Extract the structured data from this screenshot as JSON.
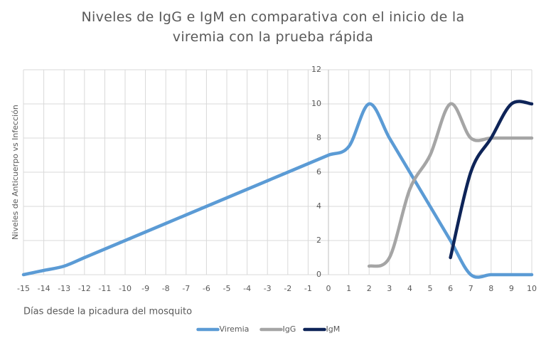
{
  "chart_data": {
    "type": "line",
    "title": "Niveles de IgG e IgM en comparativa con el inicio de la viremia con la prueba rápida",
    "x_label": "Días desde la picadura del mosquito",
    "y_label": "Niveles de Anticuerpo vs Infección",
    "x": [
      -15,
      -14,
      -13,
      -12,
      -11,
      -10,
      -9,
      -8,
      -7,
      -6,
      -5,
      -4,
      -3,
      -2,
      -1,
      0,
      1,
      2,
      3,
      4,
      5,
      6,
      7,
      8,
      9,
      10
    ],
    "series": [
      {
        "name": "Viremia",
        "color": "#5b9bd5",
        "values": [
          0,
          0.25,
          0.5,
          1,
          1.5,
          2,
          2.5,
          3,
          3.5,
          4,
          4.5,
          5,
          5.5,
          6,
          6.5,
          7,
          7.5,
          10,
          8,
          6,
          4,
          2,
          0,
          0,
          0,
          0
        ]
      },
      {
        "name": "IgG",
        "color": "#a5a5a5",
        "values": [
          null,
          null,
          null,
          null,
          null,
          null,
          null,
          null,
          null,
          null,
          null,
          null,
          null,
          null,
          null,
          null,
          null,
          0.5,
          1,
          5,
          7,
          10,
          8,
          8,
          8,
          8
        ]
      },
      {
        "name": "IgM",
        "color": "#0e2458",
        "values": [
          null,
          null,
          null,
          null,
          null,
          null,
          null,
          null,
          null,
          null,
          null,
          null,
          null,
          null,
          null,
          null,
          null,
          null,
          null,
          null,
          null,
          1,
          6,
          8,
          10,
          10
        ]
      }
    ],
    "xlim": [
      -15,
      10
    ],
    "xticks": [
      -15,
      -14,
      -13,
      -12,
      -11,
      -10,
      -9,
      -8,
      -7,
      -6,
      -5,
      -4,
      -3,
      -2,
      -1,
      0,
      1,
      2,
      3,
      4,
      5,
      6,
      7,
      8,
      9,
      10
    ],
    "ylim": [
      0,
      12
    ],
    "yticks": [
      0,
      2,
      4,
      6,
      8,
      10,
      12
    ],
    "grid": true,
    "legend": "bottom"
  }
}
